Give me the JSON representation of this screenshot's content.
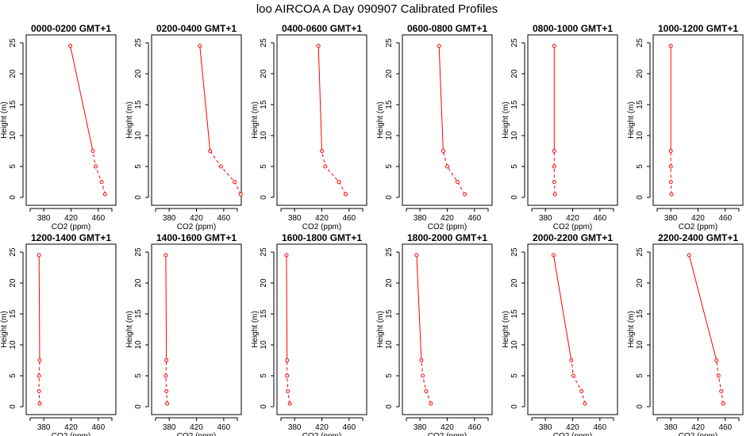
{
  "title": "loo AIRCOA A  Day 090907  Calibrated Profiles",
  "chart_data": {
    "type": "line",
    "xlabel": "CO2 (ppm)",
    "ylabel": "Height (m)",
    "xlim": [
      360,
      480
    ],
    "ylim": [
      0,
      25
    ],
    "xticks": [
      380,
      420,
      460
    ],
    "yticks": [
      0,
      5,
      10,
      15,
      20,
      25
    ],
    "heights": [
      0.5,
      2.5,
      5,
      7.5,
      24.5
    ],
    "line_color": "#ff0000",
    "panels": [
      {
        "title": "0000-0200 GMT+1",
        "values": [
          470,
          465,
          456,
          452,
          419
        ]
      },
      {
        "title": "0200-0400 GMT+1",
        "values": [
          485,
          476,
          456,
          440,
          425
        ]
      },
      {
        "title": "0400-0600 GMT+1",
        "values": [
          455,
          445,
          425,
          420,
          415
        ]
      },
      {
        "title": "0600-0800 GMT+1",
        "values": [
          446,
          435,
          420,
          414,
          408
        ]
      },
      {
        "title": "0800-1000 GMT+1",
        "values": [
          394,
          393,
          393,
          393,
          393
        ]
      },
      {
        "title": "1000-1200 GMT+1",
        "values": [
          381,
          380,
          380,
          380,
          380
        ]
      },
      {
        "title": "1200-1400 GMT+1",
        "values": [
          374,
          373,
          373,
          374,
          373
        ]
      },
      {
        "title": "1400-1600 GMT+1",
        "values": [
          377,
          376,
          375,
          376,
          375
        ]
      },
      {
        "title": "1600-1800 GMT+1",
        "values": [
          373,
          370,
          369,
          369,
          368
        ]
      },
      {
        "title": "1800-2000 GMT+1",
        "values": [
          396,
          389,
          384,
          382,
          375
        ]
      },
      {
        "title": "2000-2200 GMT+1",
        "values": [
          438,
          433,
          421,
          418,
          392
        ]
      },
      {
        "title": "2200-2400 GMT+1",
        "values": [
          457,
          454,
          450,
          447,
          407
        ]
      }
    ]
  }
}
